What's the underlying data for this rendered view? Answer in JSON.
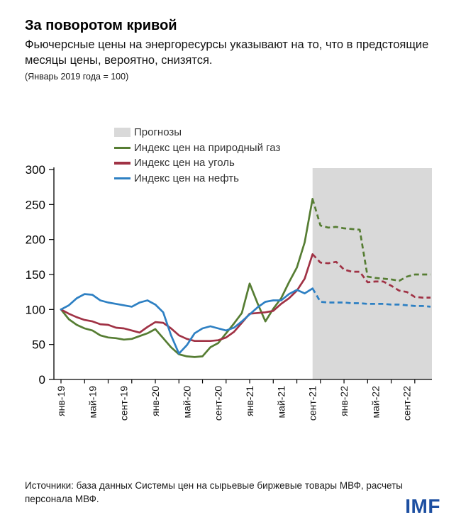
{
  "header": {
    "title": "За поворотом кривой",
    "subtitle": "Фьючерсные цены на энергоресурсы указывают на то, что в предстоящие месяцы цены, вероятно, снизятся.",
    "note": "(Январь 2019 года = 100)"
  },
  "chart_data": {
    "type": "line",
    "title": "За поворотом кривой",
    "index_base_note": "Январь 2019 года = 100",
    "x_start": "янв-19",
    "x_end": "дек-22",
    "n_points": 48,
    "x_tick_labels": [
      "янв-19",
      "май-19",
      "сент-19",
      "янв-20",
      "май-20",
      "сент-20",
      "янв-21",
      "май-21",
      "сент-21",
      "янв-22",
      "май-22",
      "сент-22"
    ],
    "y_ticks": [
      0,
      50,
      100,
      150,
      200,
      250,
      300
    ],
    "ylim": [
      0,
      300
    ],
    "grid": false,
    "legend_position": "top-left-inside",
    "forecast_label": "Прогнозы",
    "forecast_fill": "#d9d9d9",
    "forecast_start_index": 32,
    "series": [
      {
        "name": "Индекс цен на природный газ",
        "color": "#567d33",
        "values": [
          100,
          86,
          78,
          73,
          70,
          63,
          60,
          59,
          57,
          58,
          62,
          66,
          72,
          59,
          46,
          36,
          33,
          32,
          33,
          46,
          52,
          66,
          80,
          95,
          137,
          109,
          83,
          101,
          116,
          139,
          160,
          196,
          258,
          220,
          217,
          218,
          216,
          215,
          214,
          147,
          145,
          144,
          143,
          141,
          147,
          150,
          150,
          150
        ]
      },
      {
        "name": "Индекс цен на уголь",
        "color": "#a03245",
        "values": [
          100,
          94,
          89,
          85,
          83,
          79,
          78,
          74,
          73,
          70,
          67,
          75,
          82,
          81,
          73,
          63,
          58,
          55,
          55,
          55,
          56,
          60,
          68,
          81,
          94,
          95,
          96,
          98,
          108,
          116,
          127,
          144,
          179,
          167,
          166,
          168,
          157,
          154,
          154,
          139,
          140,
          140,
          134,
          127,
          125,
          118,
          117,
          117
        ]
      },
      {
        "name": "Индекс цен на нефть",
        "color": "#2e80c3",
        "values": [
          100,
          106,
          116,
          122,
          121,
          113,
          110,
          108,
          106,
          104,
          110,
          113,
          107,
          96,
          63,
          37,
          49,
          66,
          73,
          76,
          73,
          70,
          74,
          83,
          93,
          103,
          111,
          113,
          113,
          122,
          128,
          123,
          130,
          111,
          110,
          110,
          110,
          109,
          109,
          108,
          108,
          108,
          107,
          107,
          106,
          105,
          105,
          104
        ]
      }
    ]
  },
  "footer": {
    "source": "Источники: база данных Системы цен на сырьевые биржевые товары МВФ, расчеты персонала МВФ.",
    "logo": "IMF"
  }
}
